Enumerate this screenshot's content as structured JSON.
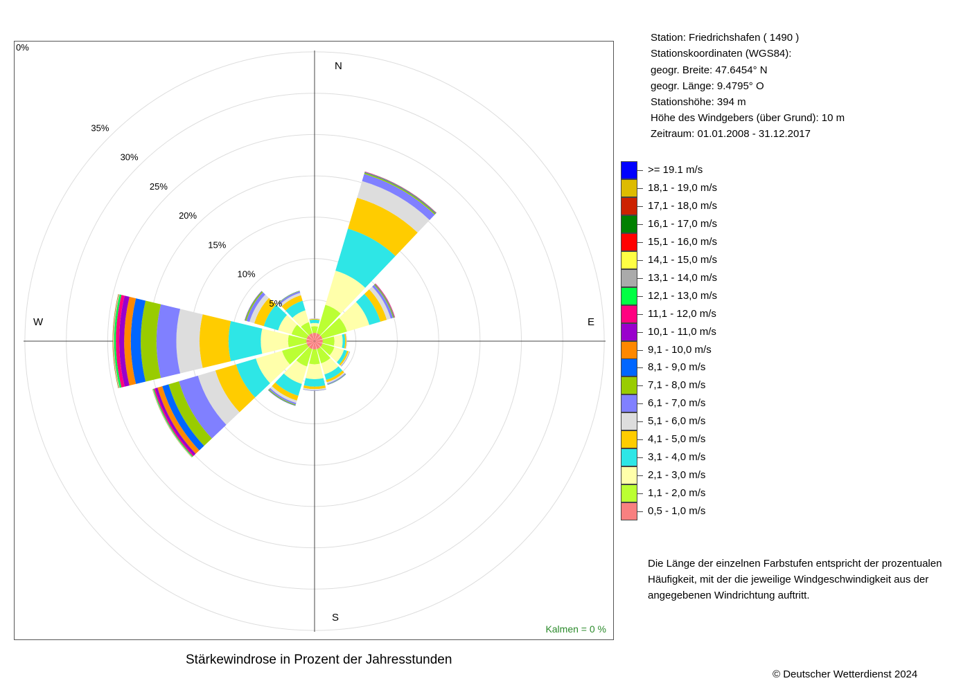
{
  "station": {
    "line1": "Station:  Friedrichshafen  ( 1490 )",
    "line2": "Stationskoordinaten (WGS84):",
    "line3": "geogr. Breite: 47.6454° N",
    "line4": "geogr. Länge:   9.4795° O",
    "line5": "Stationshöhe: 394 m",
    "line6": "Höhe des Windgebers (über Grund): 10 m",
    "line7": "Zeitraum: 01.01.2008 - 31.12.2017"
  },
  "note": "Die Länge der einzelnen Farbstufen entspricht der prozentualen Häufigkeit, mit der die jeweilige Windgeschwindigkeit aus der angegebenen Windrichtung auftritt.",
  "copyright": "© Deutscher Wetterdienst  2024",
  "chart_data": {
    "type": "wind-rose",
    "title": "Stärkewindrose in Prozent der Jahresstunden",
    "calm_label": "Kalmen  =  0 %",
    "center_label": "0%",
    "radial_tick_labels": [
      "5%",
      "10%",
      "15%",
      "20%",
      "25%",
      "30%",
      "35%"
    ],
    "radial_ticks": [
      5,
      10,
      15,
      20,
      25,
      30,
      35
    ],
    "rmax": 36,
    "compass": {
      "N": "N",
      "E": "E",
      "S": "S",
      "W": "W"
    },
    "direction_angles": [
      0,
      30,
      60,
      90,
      120,
      150,
      180,
      210,
      240,
      270,
      300,
      330
    ],
    "bins": [
      {
        "label": "0,5 - 1,0 m/s",
        "color": "#f88080"
      },
      {
        "label": "1,1 - 2,0 m/s",
        "color": "#bbff33"
      },
      {
        "label": "2,1 - 3,0 m/s",
        "color": "#ffffaa"
      },
      {
        "label": "3,1 - 4,0 m/s",
        "color": "#2ee6e6"
      },
      {
        "label": "4,1 - 5,0 m/s",
        "color": "#ffcc00"
      },
      {
        "label": "5,1 - 6,0 m/s",
        "color": "#dddddd"
      },
      {
        "label": "6,1 - 7,0 m/s",
        "color": "#8080ff"
      },
      {
        "label": "7,1 - 8,0 m/s",
        "color": "#99cc00"
      },
      {
        "label": "8,1 - 9,0 m/s",
        "color": "#0066ff"
      },
      {
        "label": "9,1 - 10,0 m/s",
        "color": "#ff8800"
      },
      {
        "label": "10,1 - 11,0 m/s",
        "color": "#9900cc"
      },
      {
        "label": "11,1 - 12,0 m/s",
        "color": "#ff0080"
      },
      {
        "label": "12,1 - 13,0 m/s",
        "color": "#00ff44"
      },
      {
        "label": "13,1 - 14,0 m/s",
        "color": "#aaaaaa"
      },
      {
        "label": "14,1 - 15,0 m/s",
        "color": "#ffff44"
      },
      {
        "label": "15,1 - 16,0 m/s",
        "color": "#ff0000"
      },
      {
        "label": "16,1 - 17,0 m/s",
        "color": "#008000"
      },
      {
        "label": "17,1 - 18,0 m/s",
        "color": "#cc2200"
      },
      {
        "label": "18,1 - 19,0 m/s",
        "color": "#ddbb00"
      },
      {
        "label": ">= 19.1 m/s",
        "color": "#0000ff"
      }
    ],
    "series": [
      {
        "direction": 0,
        "values": [
          1.0,
          0.8,
          0.4,
          0.4,
          0.1,
          0.05,
          0.02,
          0,
          0,
          0,
          0,
          0,
          0,
          0,
          0,
          0,
          0,
          0,
          0,
          0
        ]
      },
      {
        "direction": 30,
        "values": [
          1.0,
          3.6,
          4.3,
          5.3,
          3.9,
          2.1,
          0.9,
          0.15,
          0.07,
          0.05,
          0.03,
          0.01,
          0.01,
          0,
          0,
          0,
          0,
          0,
          0,
          0
        ]
      },
      {
        "direction": 60,
        "values": [
          1.0,
          3.1,
          2.8,
          1.4,
          0.8,
          0.5,
          0.3,
          0.1,
          0.05,
          0.05,
          0.03,
          0.02,
          0,
          0,
          0,
          0,
          0,
          0,
          0,
          0
        ]
      },
      {
        "direction": 90,
        "values": [
          1.0,
          1.4,
          1.0,
          0.3,
          0.15,
          0.05,
          0.02,
          0,
          0,
          0,
          0,
          0,
          0,
          0,
          0,
          0,
          0,
          0,
          0,
          0
        ]
      },
      {
        "direction": 120,
        "values": [
          1.0,
          1.5,
          1.2,
          0.4,
          0.2,
          0.1,
          0.05,
          0.02,
          0,
          0,
          0,
          0,
          0,
          0,
          0,
          0,
          0,
          0,
          0,
          0
        ]
      },
      {
        "direction": 150,
        "values": [
          1.0,
          1.8,
          1.4,
          0.7,
          0.3,
          0.15,
          0.1,
          0.05,
          0.02,
          0,
          0,
          0,
          0,
          0,
          0,
          0,
          0,
          0,
          0,
          0
        ]
      },
      {
        "direction": 180,
        "values": [
          1.0,
          1.8,
          1.8,
          0.9,
          0.3,
          0.15,
          0.05,
          0.02,
          0,
          0,
          0,
          0,
          0,
          0,
          0,
          0,
          0,
          0,
          0,
          0
        ]
      },
      {
        "direction": 210,
        "values": [
          1.0,
          2.2,
          2.2,
          1.5,
          0.6,
          0.3,
          0.2,
          0.1,
          0.05,
          0.02,
          0,
          0,
          0,
          0,
          0,
          0,
          0,
          0,
          0,
          0
        ]
      },
      {
        "direction": 240,
        "values": [
          1.0,
          3.1,
          3.3,
          2.5,
          2.6,
          2.2,
          2.4,
          1.3,
          0.8,
          0.6,
          0.3,
          0.15,
          0.1,
          0.05,
          0.03,
          0.01,
          0.01,
          0,
          0,
          0
        ]
      },
      {
        "direction": 270,
        "values": [
          1.0,
          2.2,
          3.3,
          3.9,
          3.5,
          2.8,
          2.4,
          1.9,
          1.2,
          0.8,
          0.6,
          0.4,
          0.2,
          0.1,
          0.05,
          0.02,
          0.02,
          0.01,
          0,
          0
        ]
      },
      {
        "direction": 300,
        "values": [
          1.0,
          1.9,
          1.7,
          1.8,
          1.2,
          0.6,
          0.4,
          0.15,
          0.05,
          0.02,
          0.01,
          0,
          0,
          0,
          0,
          0,
          0,
          0,
          0,
          0
        ]
      },
      {
        "direction": 330,
        "values": [
          1.0,
          1.4,
          1.5,
          1.2,
          0.7,
          0.3,
          0.2,
          0.05,
          0.02,
          0,
          0,
          0,
          0,
          0,
          0,
          0,
          0,
          0,
          0,
          0
        ]
      }
    ]
  }
}
